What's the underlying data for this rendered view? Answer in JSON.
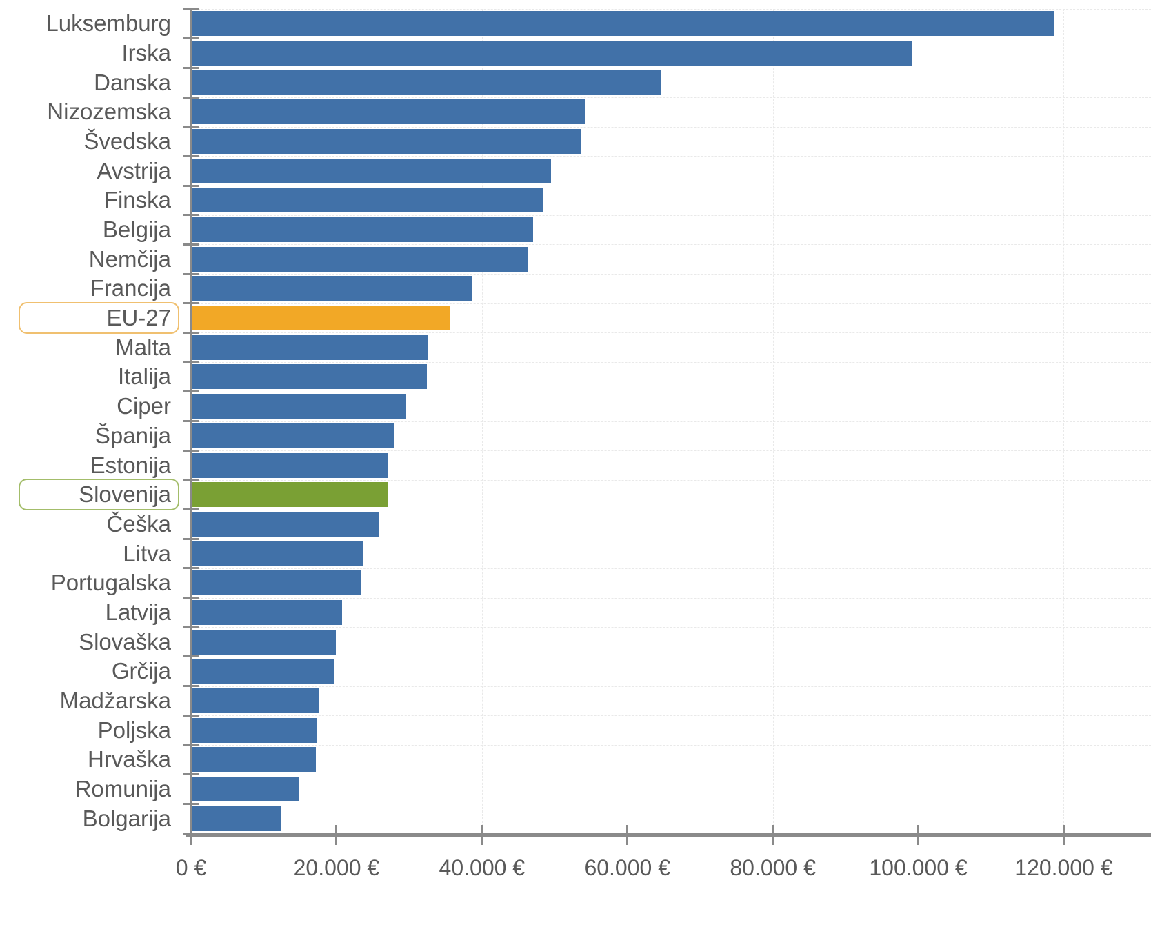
{
  "chart_data": {
    "type": "bar",
    "orientation": "horizontal",
    "title": "",
    "xlabel": "",
    "ylabel": "",
    "unit": "€",
    "xlim": [
      0,
      132000
    ],
    "grid": "dashed-light",
    "legend": "none",
    "x_ticks": [
      {
        "value": 0,
        "label": "0 €"
      },
      {
        "value": 20000,
        "label": "20.000 €"
      },
      {
        "value": 40000,
        "label": "40.000 €"
      },
      {
        "value": 60000,
        "label": "60.000 €"
      },
      {
        "value": 80000,
        "label": "80.000 €"
      },
      {
        "value": 100000,
        "label": "100.000 €"
      },
      {
        "value": 120000,
        "label": "120.000 €"
      }
    ],
    "rows": [
      {
        "label": "Luksemburg",
        "value": 118600,
        "highlight": "default",
        "boxed": false
      },
      {
        "label": "Irska",
        "value": 99150,
        "highlight": "default",
        "boxed": false
      },
      {
        "label": "Danska",
        "value": 64550,
        "highlight": "default",
        "boxed": false
      },
      {
        "label": "Nizozemska",
        "value": 54200,
        "highlight": "default",
        "boxed": false
      },
      {
        "label": "Švedska",
        "value": 53700,
        "highlight": "default",
        "boxed": false
      },
      {
        "label": "Avstrija",
        "value": 49500,
        "highlight": "default",
        "boxed": false
      },
      {
        "label": "Finska",
        "value": 48400,
        "highlight": "default",
        "boxed": false
      },
      {
        "label": "Belgija",
        "value": 47000,
        "highlight": "default",
        "boxed": false
      },
      {
        "label": "Nemčija",
        "value": 46350,
        "highlight": "default",
        "boxed": false
      },
      {
        "label": "Francija",
        "value": 38600,
        "highlight": "default",
        "boxed": false
      },
      {
        "label": "EU-27",
        "value": 35550,
        "highlight": "eu",
        "boxed": true
      },
      {
        "label": "Malta",
        "value": 32500,
        "highlight": "default",
        "boxed": false
      },
      {
        "label": "Italija",
        "value": 32400,
        "highlight": "default",
        "boxed": false
      },
      {
        "label": "Ciper",
        "value": 29550,
        "highlight": "default",
        "boxed": false
      },
      {
        "label": "Španija",
        "value": 27850,
        "highlight": "default",
        "boxed": false
      },
      {
        "label": "Estonija",
        "value": 27100,
        "highlight": "default",
        "boxed": false
      },
      {
        "label": "Slovenija",
        "value": 27000,
        "highlight": "si",
        "boxed": true
      },
      {
        "label": "Češka",
        "value": 25900,
        "highlight": "default",
        "boxed": false
      },
      {
        "label": "Litva",
        "value": 23600,
        "highlight": "default",
        "boxed": false
      },
      {
        "label": "Portugalska",
        "value": 23400,
        "highlight": "default",
        "boxed": false
      },
      {
        "label": "Latvija",
        "value": 20750,
        "highlight": "default",
        "boxed": false
      },
      {
        "label": "Slovaška",
        "value": 19900,
        "highlight": "default",
        "boxed": false
      },
      {
        "label": "Grčija",
        "value": 19700,
        "highlight": "default",
        "boxed": false
      },
      {
        "label": "Madžarska",
        "value": 17550,
        "highlight": "default",
        "boxed": false
      },
      {
        "label": "Poljska",
        "value": 17350,
        "highlight": "default",
        "boxed": false
      },
      {
        "label": "Hrvaška",
        "value": 17150,
        "highlight": "default",
        "boxed": false
      },
      {
        "label": "Romunija",
        "value": 14900,
        "highlight": "default",
        "boxed": false
      },
      {
        "label": "Bolgarija",
        "value": 12400,
        "highlight": "default",
        "boxed": false
      }
    ]
  },
  "colors": {
    "bar_default": "#4171A8",
    "bar_eu": "#F2A826",
    "bar_si": "#7AA034",
    "box_border_eu": "#F0C070",
    "box_border_si": "#A3BD6A",
    "axis": "#8a8a8a",
    "label_text": "#595959",
    "gridline": "#e9e9e9",
    "background": "#ffffff"
  }
}
